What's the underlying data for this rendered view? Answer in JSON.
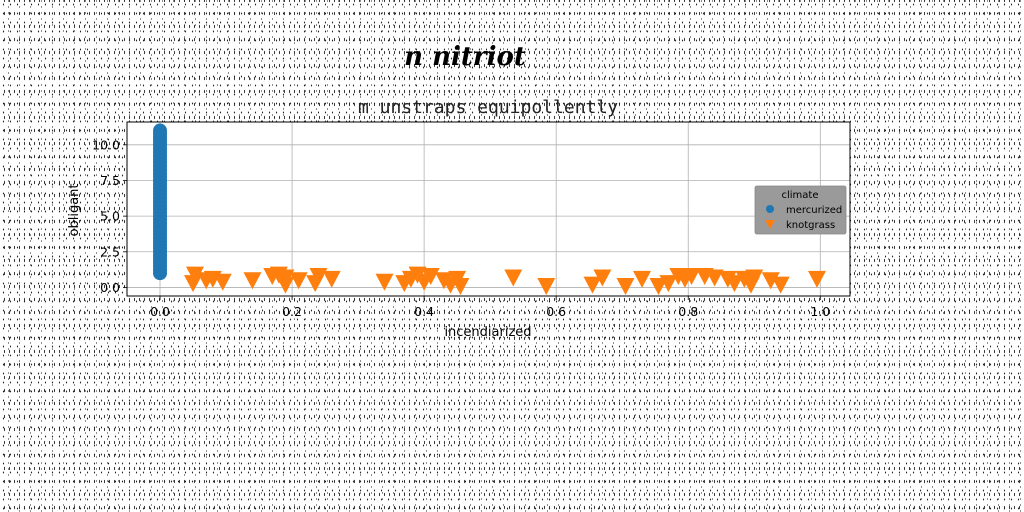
{
  "chart_data": {
    "type": "scatter",
    "suptitle": "n nitriot",
    "title": "m unstraps equipollently",
    "xlabel": "incendiarized",
    "ylabel": "obligant",
    "xlim": [
      -0.05,
      1.045
    ],
    "ylim": [
      -0.6,
      11.6
    ],
    "xticks": [
      0.0,
      0.2,
      0.4,
      0.6,
      0.8,
      1.0
    ],
    "xtick_labels": [
      "0.0",
      "0.2",
      "0.4",
      "0.6",
      "0.8",
      "1.0"
    ],
    "yticks": [
      0.0,
      2.5,
      5.0,
      7.5,
      10.0
    ],
    "ytick_labels": [
      "0.0",
      "2.5",
      "5.0",
      "7.5",
      "10.0"
    ],
    "grid": true,
    "legend": {
      "title": "climate",
      "placement": "center-right"
    },
    "series": [
      {
        "name": "mercurized",
        "marker": "circle",
        "color": "#1f77b4",
        "x": [
          0,
          0,
          0,
          0,
          0,
          0,
          0,
          0,
          0,
          0,
          0,
          0,
          0,
          0,
          0,
          0,
          0,
          0,
          0,
          0,
          0,
          0,
          0,
          0,
          0,
          0,
          0,
          0,
          0,
          0,
          0,
          0,
          0,
          0,
          0,
          0,
          0,
          0,
          0,
          0,
          0
        ],
        "y": [
          1.0,
          1.25,
          1.5,
          1.75,
          2.0,
          2.25,
          2.5,
          2.75,
          3.0,
          3.25,
          3.5,
          3.75,
          4.0,
          4.25,
          4.5,
          4.75,
          5.0,
          5.25,
          5.5,
          5.75,
          6.0,
          6.25,
          6.5,
          6.75,
          7.0,
          7.25,
          7.5,
          7.75,
          8.0,
          8.25,
          8.5,
          8.75,
          9.0,
          9.25,
          9.5,
          9.75,
          10.0,
          10.25,
          10.5,
          10.75,
          11.0
        ]
      },
      {
        "name": "knotgrass",
        "marker": "triangle-down",
        "color": "#ff7f0e",
        "x": [
          0.05,
          0.053,
          0.07,
          0.08,
          0.095,
          0.14,
          0.17,
          0.18,
          0.19,
          0.19,
          0.21,
          0.235,
          0.24,
          0.26,
          0.34,
          0.37,
          0.38,
          0.39,
          0.4,
          0.41,
          0.43,
          0.44,
          0.45,
          0.455,
          0.535,
          0.585,
          0.655,
          0.67,
          0.705,
          0.73,
          0.755,
          0.77,
          0.785,
          0.795,
          0.805,
          0.825,
          0.84,
          0.86,
          0.87,
          0.885,
          0.895,
          0.9,
          0.925,
          0.94,
          0.995
        ],
        "y": [
          0.3,
          0.9,
          0.5,
          0.6,
          0.4,
          0.5,
          0.8,
          0.9,
          0.2,
          0.7,
          0.5,
          0.3,
          0.8,
          0.6,
          0.4,
          0.3,
          0.6,
          0.9,
          0.4,
          0.8,
          0.5,
          0.2,
          0.6,
          0.1,
          0.7,
          0.1,
          0.2,
          0.7,
          0.1,
          0.6,
          0.1,
          0.3,
          0.8,
          0.6,
          0.8,
          0.8,
          0.7,
          0.6,
          0.3,
          0.6,
          0.2,
          0.7,
          0.5,
          0.2,
          0.6
        ]
      }
    ]
  }
}
